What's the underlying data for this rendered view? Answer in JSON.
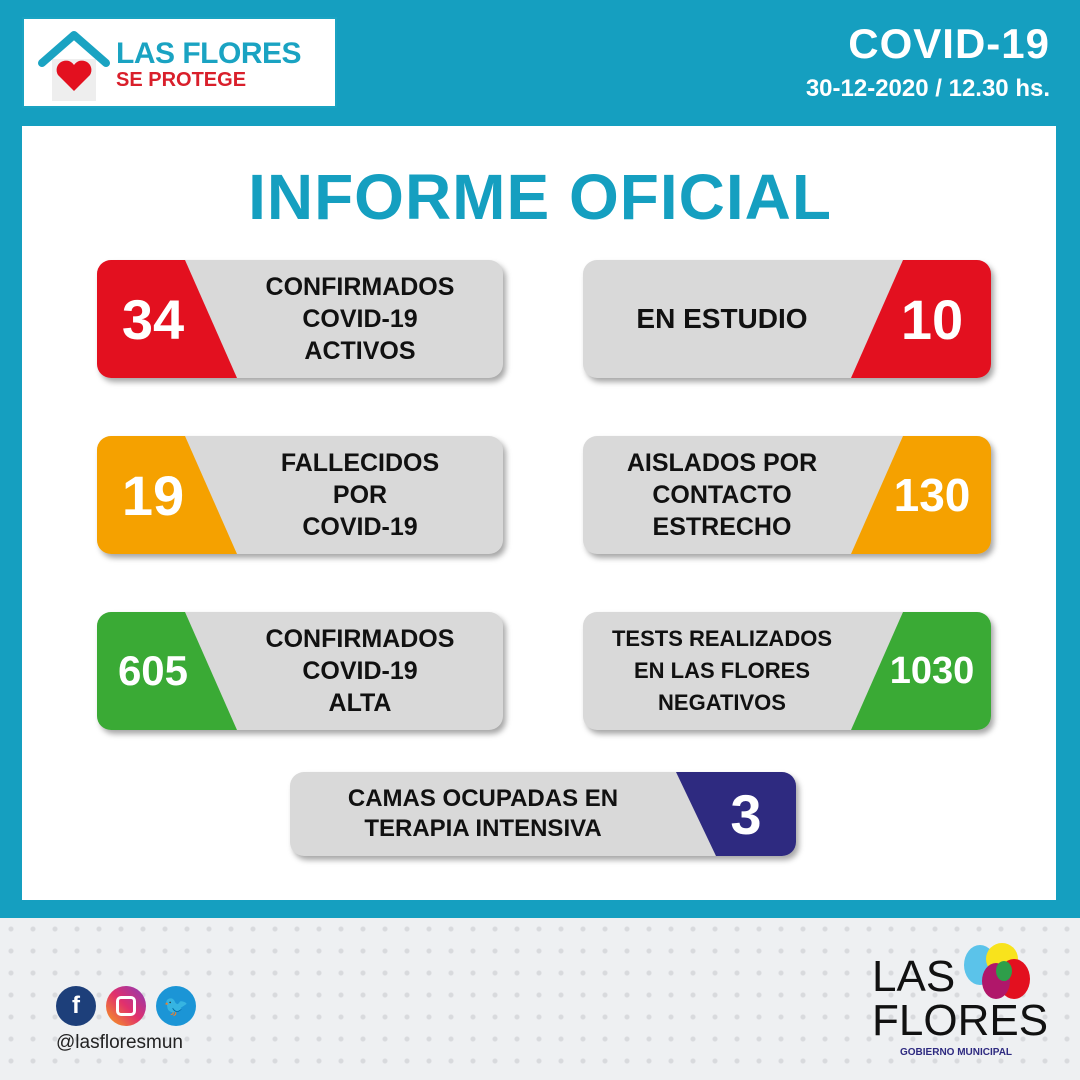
{
  "logo": {
    "line1": "LAS FLORES",
    "line2": "SE PROTEGE"
  },
  "header": {
    "title": "COVID-19",
    "date": "30-12-2020 / 12.30 hs."
  },
  "main_title": "INFORME OFICIAL",
  "colors": {
    "teal": "#159fc0",
    "red": "#e3101f",
    "orange": "#f5a100",
    "green": "#3aaa35",
    "navy": "#2e2a80"
  },
  "cards": [
    {
      "value": "34",
      "label": "CONFIRMADOS\nCOVID-19\nACTIVOS"
    },
    {
      "value": "10",
      "label": "EN ESTUDIO"
    },
    {
      "value": "19",
      "label": "FALLECIDOS\nPOR\nCOVID-19"
    },
    {
      "value": "130",
      "label": "AISLADOS POR\nCONTACTO\nESTRECHO"
    },
    {
      "value": "605",
      "label": "CONFIRMADOS\nCOVID-19\nALTA"
    },
    {
      "value": "1030",
      "label": "TESTS REALIZADOS\nEN LAS FLORES\nNEGATIVOS"
    },
    {
      "value": "3",
      "label": "CAMAS OCUPADAS EN\nTERAPIA INTENSIVA"
    }
  ],
  "footer": {
    "handle": "@lasfloresmun",
    "social_icons": [
      "facebook-icon",
      "instagram-icon",
      "twitter-icon"
    ],
    "brand_line1": "LAS",
    "brand_line2": "FLORES",
    "brand_line3": "GOBIERNO MUNICIPAL"
  }
}
